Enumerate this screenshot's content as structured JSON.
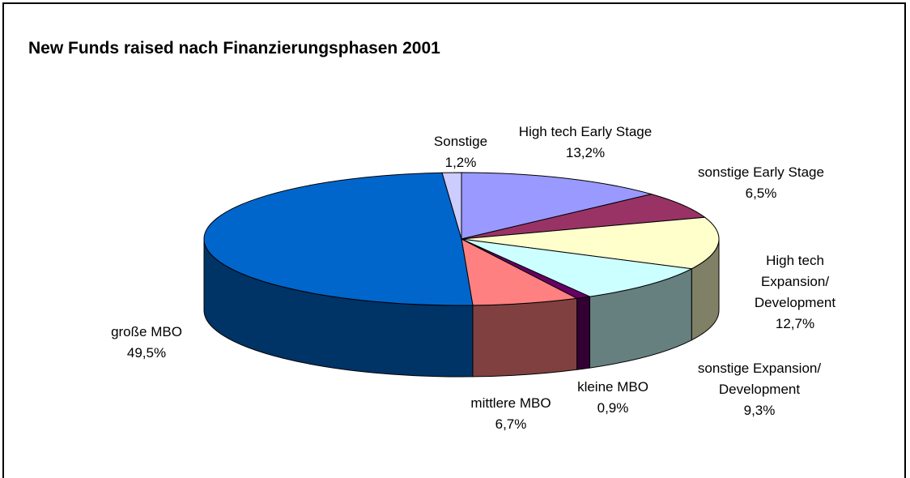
{
  "chart_data": {
    "type": "pie3d",
    "title": "New Funds raised nach Finanzierungsphasen 2001",
    "categories": [
      "High tech Early Stage",
      "sonstige Early Stage",
      "High tech Expansion/\nDevelopment",
      "sonstige Expansion/\nDevelopment",
      "kleine MBO",
      "mittlere MBO",
      "große MBO",
      "Sonstige"
    ],
    "values": [
      13.2,
      6.5,
      12.7,
      9.3,
      0.9,
      6.7,
      49.5,
      1.2
    ],
    "value_labels": [
      "13,2%",
      "6,5%",
      "12,7%",
      "9,3%",
      "0,9%",
      "6,7%",
      "49,5%",
      "1,2%"
    ],
    "colors": [
      "#9999ff",
      "#993366",
      "#ffffcc",
      "#ccffff",
      "#660066",
      "#ff8080",
      "#0066cc",
      "#ccccff"
    ]
  }
}
